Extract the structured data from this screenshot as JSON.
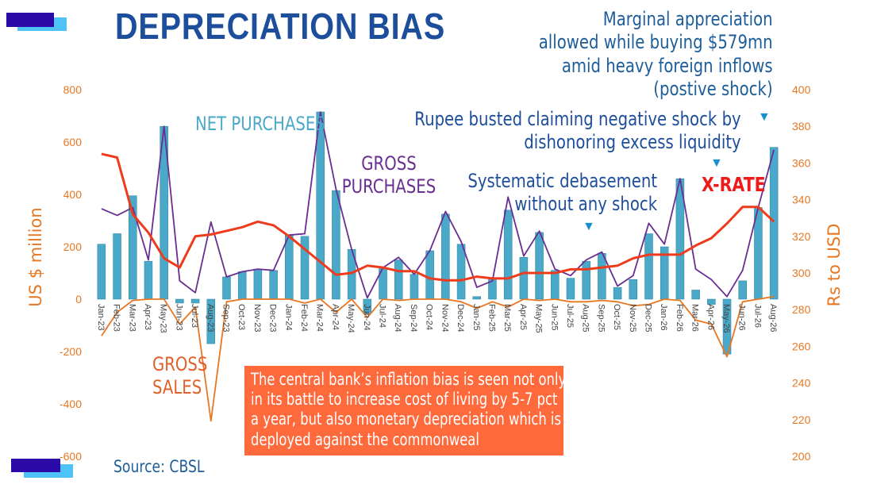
{
  "title": "DEPRECIATION BIAS",
  "annotations": {
    "appreciation": "Marginal appreciation\nallowed while buying $579mn\namid heavy foreign inflows\n(postive shock)",
    "rupee_busted": "Rupee busted claiming negative shock by\ndishonoring excess liquidity",
    "systematic": "Systematic debasement\nwithout any shock",
    "xrate": "X-RATE",
    "net_purchases": "NET PURCHASES",
    "gross_purchases": "GROSS\nPURCHASES",
    "gross_sales": "GROSS\nSALES"
  },
  "callout": "The central bank’s inflation bias is seen not only in its battle to increase cost of living by 5-7 pct a year, but also monetary depreciation which is deployed against the commonweal",
  "source": "Source: CBSL",
  "colors": {
    "title": "#1d4e9c",
    "bars": "#4aa9c9",
    "gross_purchases": "#6a2d91",
    "gross_sales": "#e87722",
    "xrate": "#ee3b1b",
    "axis_text": "#e87722",
    "callout_bg": "#ff6a3d",
    "annotation_blue": "#1d5e9a",
    "arrow": "#1a8fd0"
  },
  "chart_data": {
    "type": "bar",
    "categories": [
      "Jan-23",
      "Feb-23",
      "Mar-23",
      "Apr-23",
      "May-23",
      "Jun-23",
      "Jul-23",
      "Aug-23",
      "Sep-23",
      "Oct-23",
      "Nov-23",
      "Dec-23",
      "Jan-24",
      "Feb-24",
      "Mar-24",
      "Apr-24",
      "May-24",
      "Jun-24",
      "Jul-24",
      "Aug-24",
      "Sep-24",
      "Oct-24",
      "Nov-24",
      "Dec-24",
      "Jan-25",
      "Feb-25",
      "Mar-25",
      "Apr-25",
      "May-25",
      "Jun-25",
      "Jul-25",
      "Aug-25",
      "Sep-25",
      "Oct-25",
      "Nov-25",
      "Dec-25",
      "Jan-26",
      "Feb-26",
      "Mar-26",
      "Apr-26",
      "May-26",
      "Jun-26",
      "Jul-26",
      "Aug-26"
    ],
    "ylabel": "US $ million",
    "y2label": "Rs to USD",
    "ylim": [
      -600,
      800
    ],
    "y2lim": [
      200,
      400
    ],
    "yticks": [
      "800",
      "600",
      "400",
      "200",
      "0",
      "-200",
      "-400",
      "-600"
    ],
    "y2ticks": [
      "400",
      "380",
      "360",
      "340",
      "320",
      "300",
      "280",
      "260",
      "240",
      "220",
      "200"
    ],
    "series": [
      {
        "type": "bar",
        "values": [
          210,
          250,
          395,
          145,
          660,
          -15,
          -15,
          -170,
          85,
          105,
          115,
          110,
          245,
          240,
          715,
          415,
          190,
          -55,
          120,
          150,
          95,
          185,
          325,
          210,
          10,
          80,
          340,
          160,
          255,
          110,
          80,
          145,
          175,
          45,
          75,
          250,
          200,
          460,
          35,
          -20,
          -210,
          70,
          350,
          580
        ]
      },
      {
        "type": "line",
        "values": [
          345,
          320,
          350,
          150,
          660,
          70,
          25,
          295,
          85,
          105,
          115,
          110,
          245,
          250,
          715,
          420,
          190,
          5,
          120,
          160,
          95,
          185,
          335,
          220,
          45,
          70,
          390,
          165,
          260,
          115,
          90,
          150,
          180,
          50,
          90,
          290,
          210,
          460,
          115,
          75,
          10,
          110,
          350,
          570
        ]
      },
      {
        "type": "line",
        "values": [
          -140,
          -50,
          -5,
          0,
          0,
          -95,
          -30,
          -465,
          -10,
          0,
          0,
          0,
          0,
          -15,
          0,
          -50,
          0,
          -70,
          0,
          -5,
          0,
          0,
          0,
          -10,
          -35,
          -10,
          -30,
          0,
          -5,
          0,
          -10,
          -10,
          -5,
          -10,
          -25,
          -20,
          0,
          -5,
          -80,
          -95,
          -220,
          -10,
          0,
          10
        ]
      },
      {
        "type": "line",
        "values": [
          365,
          363,
          332,
          322,
          308,
          303,
          320,
          321,
          323,
          325,
          328,
          326,
          320,
          313,
          306,
          299,
          300,
          304,
          303,
          301,
          301,
          297,
          296,
          296,
          298,
          297,
          297,
          300,
          300,
          300,
          302,
          302,
          303,
          304,
          308,
          310,
          310,
          310,
          315,
          319,
          327,
          336,
          336,
          328
        ]
      }
    ]
  }
}
